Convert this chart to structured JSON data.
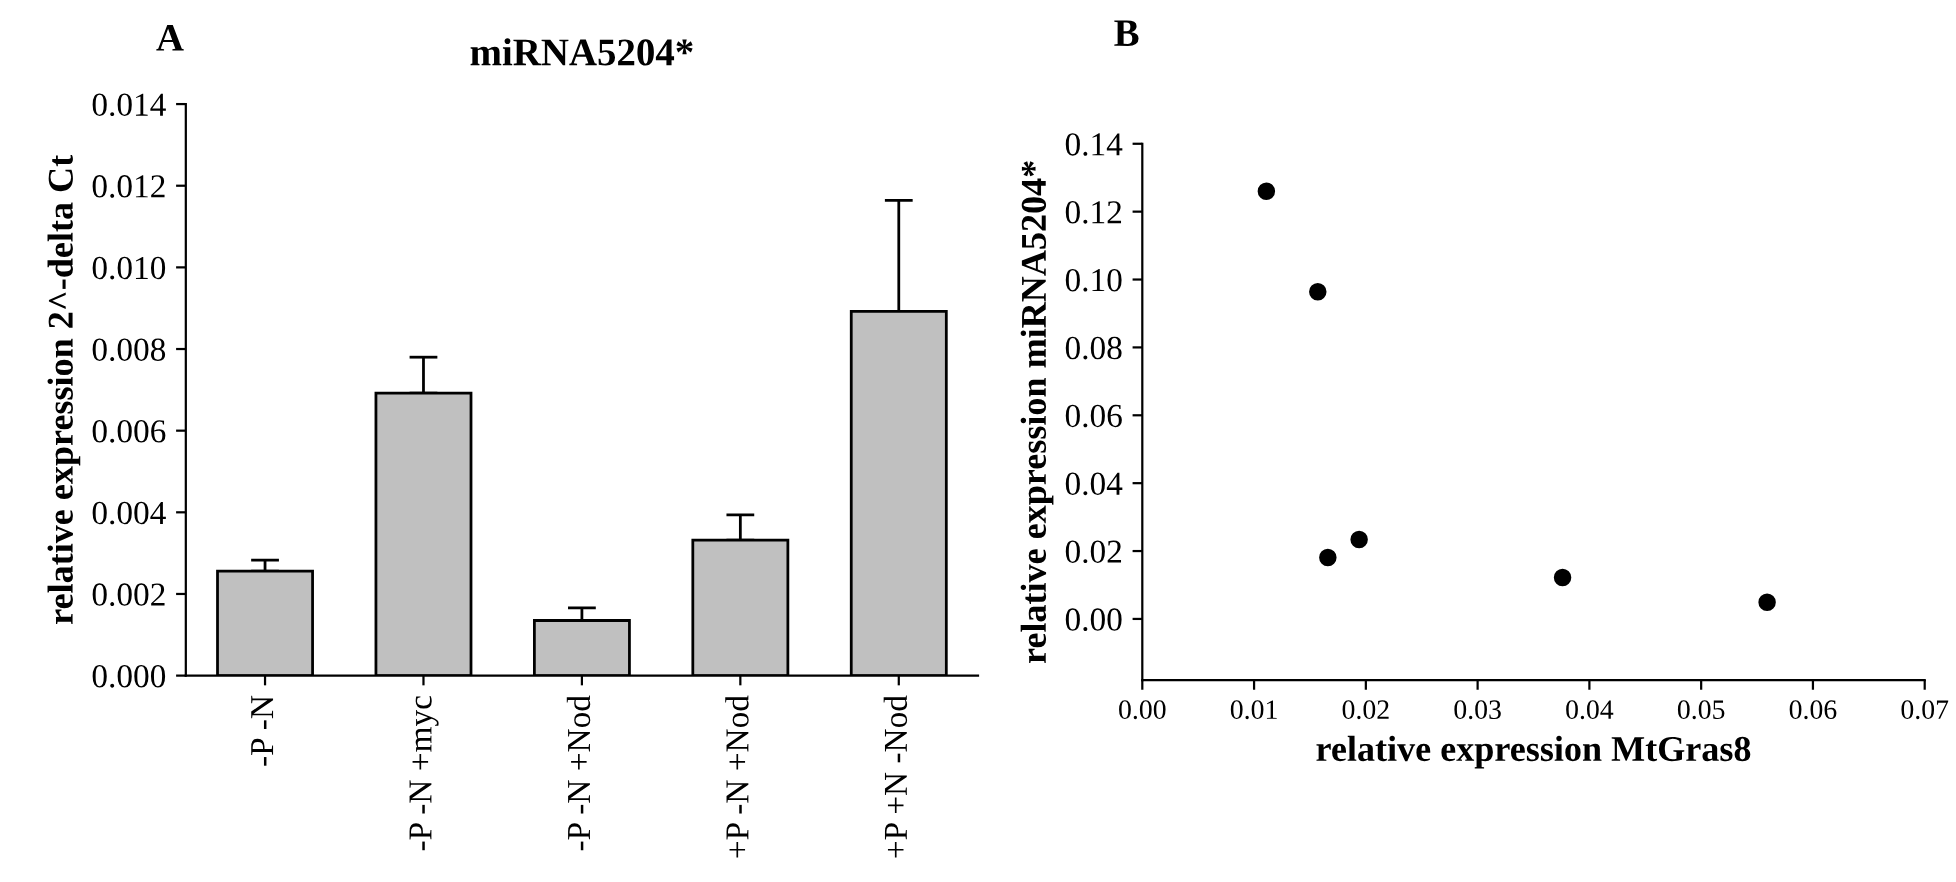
{
  "chart_data": [
    {
      "type": "bar",
      "title": "miRNA5204*",
      "ylabel": "relative expression 2^-delta Ct",
      "annotations": [
        "A"
      ],
      "categories": [
        "-P -N",
        "-P -N +myc",
        "-P -N +Nod",
        "+P -N +Nod",
        "+P +N -Nod"
      ],
      "values": [
        0.00256,
        0.00692,
        0.00135,
        0.00332,
        0.00892
      ],
      "errors": [
        [
          0.00256,
          0.00283
        ],
        [
          0.00692,
          0.0078
        ],
        [
          0.00135,
          0.00166
        ],
        [
          0.00332,
          0.00394
        ],
        [
          0.00892,
          0.01164
        ]
      ],
      "color": "#c0c0c0",
      "ylim": [
        0,
        0.014
      ],
      "yticks": [
        {
          "value": 0,
          "label": "0.000"
        },
        {
          "value": 0.002,
          "label": "0.002"
        },
        {
          "value": 0.004,
          "label": "0.004"
        },
        {
          "value": 0.006,
          "label": "0.006"
        },
        {
          "value": 0.008,
          "label": "0.008"
        },
        {
          "value": 0.01,
          "label": "0.010"
        },
        {
          "value": 0.012,
          "label": "0.012"
        },
        {
          "value": 0.014,
          "label": "0.014"
        }
      ],
      "grid": false
    },
    {
      "type": "scatter",
      "xlabel": "relative expression MtGras8",
      "ylabel": "relative expression miRNA5204*",
      "annotations": [
        "B"
      ],
      "x": [
        0.0111,
        0.0157,
        0.0166,
        0.0194,
        0.0376,
        0.0559
      ],
      "values": [
        0.126,
        0.0964,
        0.0181,
        0.0234,
        0.0122,
        0.0049
      ],
      "color": "#000000",
      "marker": "circle",
      "xlim": [
        0,
        0.07
      ],
      "xticks": [
        {
          "value": 0,
          "label": "0.00"
        },
        0.01,
        0.02,
        0.03,
        0.04,
        0.05,
        0.06,
        0.07
      ],
      "ylim": [
        -0.018,
        0.14
      ],
      "yticks": [
        {
          "value": 0,
          "label": "0.00"
        },
        0.02,
        0.04,
        0.06,
        0.08,
        {
          "value": 0.1,
          "label": "0.10"
        },
        0.12,
        0.14
      ],
      "grid": false
    }
  ]
}
